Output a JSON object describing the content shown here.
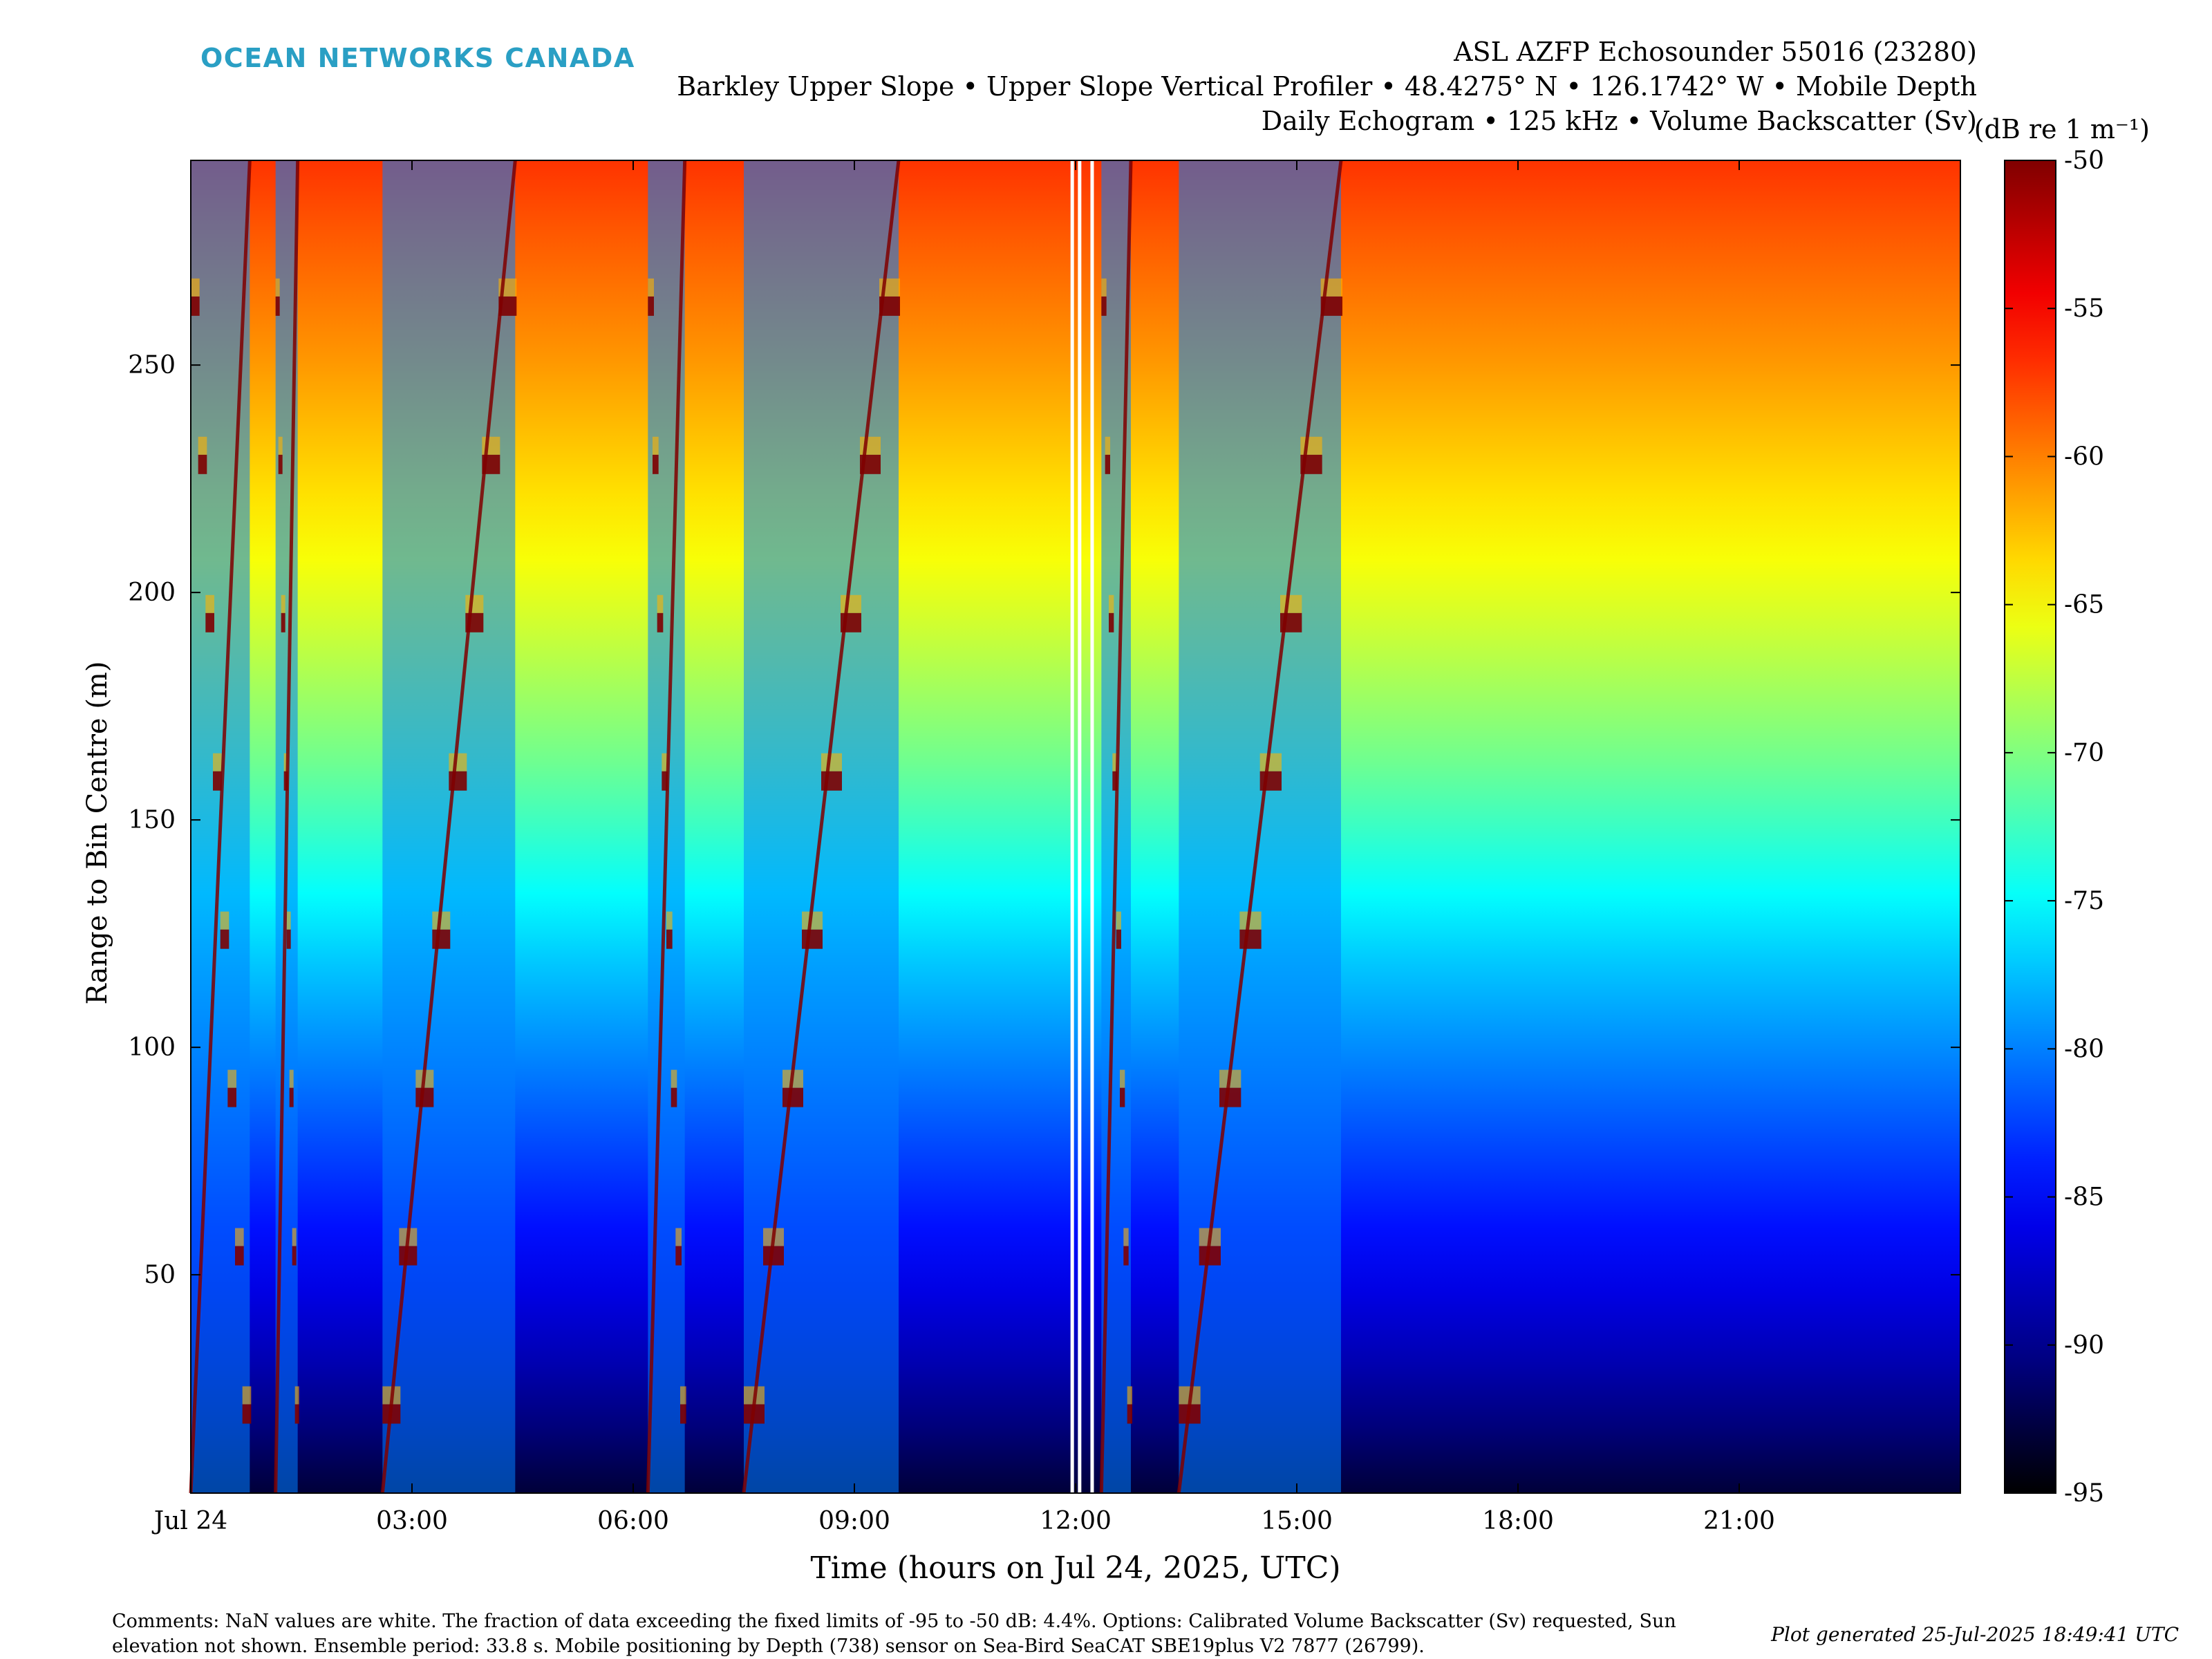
{
  "brand": "OCEAN NETWORKS CANADA",
  "title_lines": [
    "ASL AZFP Echosounder 55016 (23280)",
    "Barkley Upper Slope • Upper Slope Vertical Profiler • 48.4275° N • 126.1742° W • Mobile Depth",
    "Daily Echogram • 125 kHz • Volume Backscatter (Sv)"
  ],
  "comments": "Comments: NaN values are white. The fraction of data exceeding the fixed limits of -95 to -50 dB: 4.4%. Options: Calibrated Volume Backscatter (Sv) requested, Sun elevation not shown. Ensemble period: 33.8 s. Mobile positioning by Depth (738) sensor on Sea-Bird SeaCAT SBE19plus V2 7877 (26799).",
  "generated": "Plot generated 25-Jul-2025 18:49:41 UTC",
  "colormap": [
    "#000000",
    "#00008f",
    "#0000ff",
    "#0080ff",
    "#00ffff",
    "#80ff80",
    "#ffff00",
    "#ff8000",
    "#ff0000",
    "#800000"
  ],
  "chart_data": {
    "type": "heatmap",
    "xlabel": "Time (hours on Jul 24, 2025, UTC)",
    "ylabel": "Range to Bin Centre (m)",
    "colorbar_label": "(dB re 1 m⁻¹)",
    "x_range_hours": [
      0,
      24
    ],
    "y_range_m": [
      2,
      295
    ],
    "x_ticks": [
      {
        "value": 0,
        "label": "Jul 24"
      },
      {
        "value": 3,
        "label": "03:00"
      },
      {
        "value": 6,
        "label": "06:00"
      },
      {
        "value": 9,
        "label": "09:00"
      },
      {
        "value": 12,
        "label": "12:00"
      },
      {
        "value": 15,
        "label": "15:00"
      },
      {
        "value": 18,
        "label": "18:00"
      },
      {
        "value": 21,
        "label": "21:00"
      }
    ],
    "y_ticks": [
      {
        "value": 50,
        "label": "50"
      },
      {
        "value": 100,
        "label": "100"
      },
      {
        "value": 150,
        "label": "150"
      },
      {
        "value": 200,
        "label": "200"
      },
      {
        "value": 250,
        "label": "250"
      }
    ],
    "color_range_db": [
      -95,
      -50
    ],
    "colorbar_ticks": [
      {
        "value": -50,
        "label": "-50"
      },
      {
        "value": -55,
        "label": "-55"
      },
      {
        "value": -60,
        "label": "-60"
      },
      {
        "value": -65,
        "label": "-65"
      },
      {
        "value": -70,
        "label": "-70"
      },
      {
        "value": -75,
        "label": "-75"
      },
      {
        "value": -80,
        "label": "-80"
      },
      {
        "value": -85,
        "label": "-85"
      },
      {
        "value": -90,
        "label": "-90"
      },
      {
        "value": -95,
        "label": "-95"
      }
    ],
    "background_profile": [
      {
        "range_m": 2,
        "sv_db": -93
      },
      {
        "range_m": 40,
        "sv_db": -87
      },
      {
        "range_m": 80,
        "sv_db": -82
      },
      {
        "range_m": 120,
        "sv_db": -77
      },
      {
        "range_m": 160,
        "sv_db": -71
      },
      {
        "range_m": 200,
        "sv_db": -66
      },
      {
        "range_m": 250,
        "sv_db": -61
      },
      {
        "range_m": 295,
        "sv_db": -57
      }
    ],
    "profiler_transects": [
      {
        "start_hours": 0.0,
        "end_hours": 0.8,
        "direction": "descent"
      },
      {
        "start_hours": 1.15,
        "end_hours": 1.45,
        "direction": "descent"
      },
      {
        "start_hours": 2.6,
        "end_hours": 4.4,
        "direction": "ascent"
      },
      {
        "start_hours": 6.2,
        "end_hours": 6.7,
        "direction": "descent"
      },
      {
        "start_hours": 7.5,
        "end_hours": 9.6,
        "direction": "ascent"
      },
      {
        "start_hours": 12.35,
        "end_hours": 12.75,
        "direction": "descent"
      },
      {
        "start_hours": 13.4,
        "end_hours": 15.6,
        "direction": "ascent"
      }
    ],
    "nan_gaps_hours": [
      11.95,
      12.05,
      12.22
    ]
  }
}
